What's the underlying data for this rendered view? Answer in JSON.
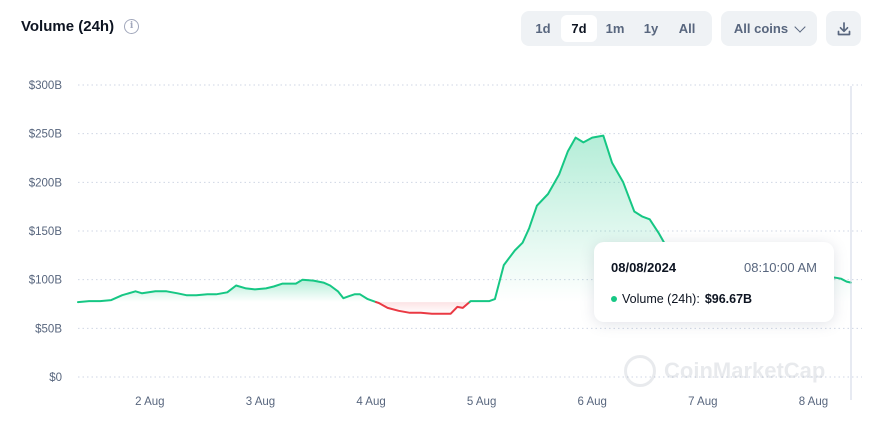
{
  "header": {
    "title": "Volume (24h)",
    "info_icon": "i",
    "ranges": [
      "1d",
      "7d",
      "1m",
      "1y",
      "All"
    ],
    "active_range": "7d",
    "coins_filter": "All coins",
    "download_icon": "download-icon"
  },
  "tooltip": {
    "date": "08/08/2024",
    "time": "08:10:00 AM",
    "series_label": "Volume (24h):",
    "value": "$96.67B"
  },
  "watermark": "CoinMarketCap",
  "colors": {
    "up": "#16c784",
    "down": "#ea3943",
    "grid": "#cfd6e4",
    "axis_text": "#58667e"
  },
  "chart_data": {
    "type": "area",
    "title": "Volume (24h)",
    "y_ticks": [
      "$0",
      "$50B",
      "$100B",
      "$150B",
      "$200B",
      "$250B",
      "$300B"
    ],
    "x_ticks": [
      {
        "label": "2 Aug",
        "x": 2.0
      },
      {
        "label": "3 Aug",
        "x": 3.0
      },
      {
        "label": "4 Aug",
        "x": 4.0
      },
      {
        "label": "5 Aug",
        "x": 5.0
      },
      {
        "label": "6 Aug",
        "x": 6.0
      },
      {
        "label": "7 Aug",
        "x": 7.0
      },
      {
        "label": "8 Aug",
        "x": 8.0
      }
    ],
    "xlim": [
      1.35,
      8.34
    ],
    "ylim": [
      0,
      300
    ],
    "y_unit": "$B",
    "baseline": 77,
    "grid": true,
    "series": [
      {
        "points": [
          [
            1.35,
            77
          ],
          [
            1.45,
            78
          ],
          [
            1.55,
            78
          ],
          [
            1.65,
            79
          ],
          [
            1.75,
            84
          ],
          [
            1.87,
            88
          ],
          [
            1.93,
            86
          ],
          [
            2.05,
            88
          ],
          [
            2.15,
            88
          ],
          [
            2.25,
            86
          ],
          [
            2.33,
            84
          ],
          [
            2.42,
            84
          ],
          [
            2.52,
            85
          ],
          [
            2.6,
            85
          ],
          [
            2.7,
            87
          ],
          [
            2.78,
            94
          ],
          [
            2.87,
            91
          ],
          [
            2.95,
            90
          ],
          [
            3.05,
            91
          ],
          [
            3.12,
            93
          ],
          [
            3.2,
            96
          ],
          [
            3.32,
            96
          ],
          [
            3.38,
            100
          ],
          [
            3.48,
            99
          ],
          [
            3.57,
            97
          ],
          [
            3.63,
            94
          ],
          [
            3.7,
            88
          ],
          [
            3.75,
            81
          ],
          [
            3.8,
            83
          ],
          [
            3.85,
            85
          ],
          [
            3.9,
            85
          ],
          [
            3.97,
            80
          ],
          [
            4.07,
            76
          ],
          [
            4.15,
            71
          ],
          [
            4.25,
            68
          ],
          [
            4.35,
            66
          ],
          [
            4.45,
            66
          ],
          [
            4.55,
            65
          ],
          [
            4.65,
            65
          ],
          [
            4.72,
            65
          ],
          [
            4.78,
            72
          ],
          [
            4.83,
            71
          ],
          [
            4.9,
            78
          ],
          [
            5.0,
            78
          ],
          [
            5.07,
            78
          ],
          [
            5.12,
            80
          ],
          [
            5.2,
            115
          ],
          [
            5.3,
            130
          ],
          [
            5.37,
            138
          ],
          [
            5.43,
            153
          ],
          [
            5.5,
            176
          ],
          [
            5.6,
            188
          ],
          [
            5.7,
            208
          ],
          [
            5.78,
            232
          ],
          [
            5.85,
            246
          ],
          [
            5.92,
            241
          ],
          [
            6.0,
            246
          ],
          [
            6.05,
            247
          ],
          [
            6.1,
            248
          ],
          [
            6.18,
            220
          ],
          [
            6.28,
            200
          ],
          [
            6.38,
            170
          ],
          [
            6.45,
            165
          ],
          [
            6.52,
            162
          ],
          [
            6.6,
            148
          ],
          [
            6.7,
            128
          ],
          [
            8.2,
            102
          ],
          [
            8.25,
            101
          ],
          [
            8.3,
            98
          ],
          [
            8.34,
            97
          ]
        ]
      }
    ]
  }
}
